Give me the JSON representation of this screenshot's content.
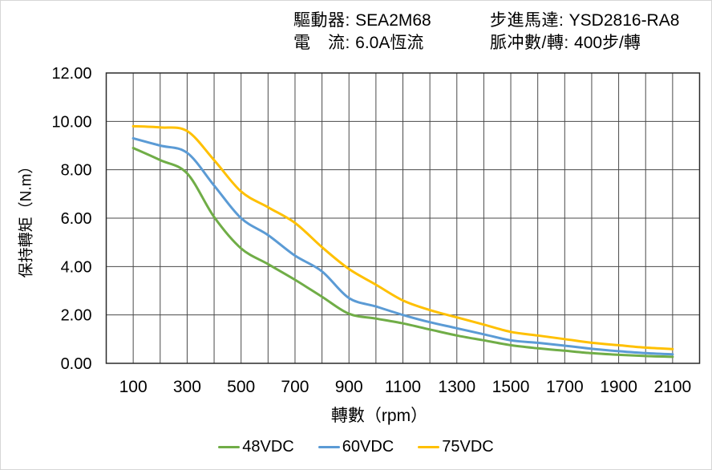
{
  "header": {
    "left": [
      {
        "label": "驅動器: ",
        "value": "SEA2M68"
      },
      {
        "label": "電　流: ",
        "value": "6.0A恆流"
      }
    ],
    "right": [
      {
        "label": "步進馬達: ",
        "value": "YSD2816-RA8"
      },
      {
        "label": "脈冲數/轉: ",
        "value": "400步/轉"
      }
    ]
  },
  "chart_data": {
    "type": "line",
    "title": "",
    "xlabel": "轉數（rpm）",
    "ylabel": "保持轉矩（N.m）",
    "xlim": [
      0,
      2200
    ],
    "ylim": [
      0,
      12
    ],
    "x_gridline_step": 100,
    "y_gridline_step": 2,
    "grid": true,
    "grid_color": "#4a4a4a",
    "border_color": "#2b2b2b",
    "text_color": "#000000",
    "legend_position": "bottom",
    "x_tick_values": [
      100,
      300,
      500,
      700,
      900,
      1100,
      1300,
      1500,
      1700,
      1900,
      2100
    ],
    "x_tick_labels": [
      "100",
      "300",
      "500",
      "700",
      "900",
      "1100",
      "1300",
      "1500",
      "1700",
      "1900",
      "2100"
    ],
    "y_tick_values": [
      0,
      2,
      4,
      6,
      8,
      10,
      12
    ],
    "y_tick_labels": [
      "0.00",
      "2.00",
      "4.00",
      "6.00",
      "8.00",
      "10.00",
      "12.00"
    ],
    "x": [
      100,
      200,
      300,
      400,
      500,
      600,
      700,
      800,
      900,
      1000,
      1100,
      1200,
      1300,
      1400,
      1500,
      1600,
      1700,
      1800,
      1900,
      2000,
      2100
    ],
    "series": [
      {
        "name": "48VDC",
        "color": "#70AD47",
        "values": [
          8.9,
          8.4,
          7.85,
          6.05,
          4.75,
          4.1,
          3.45,
          2.75,
          2.05,
          1.85,
          1.65,
          1.4,
          1.15,
          0.95,
          0.75,
          0.62,
          0.52,
          0.42,
          0.35,
          0.3,
          0.27
        ]
      },
      {
        "name": "60VDC",
        "color": "#5B9BD5",
        "values": [
          9.3,
          9.0,
          8.7,
          7.35,
          6.0,
          5.3,
          4.45,
          3.8,
          2.7,
          2.35,
          2.0,
          1.7,
          1.45,
          1.2,
          0.95,
          0.85,
          0.73,
          0.6,
          0.5,
          0.42,
          0.37
        ]
      },
      {
        "name": "75VDC",
        "color": "#FFC000",
        "values": [
          9.8,
          9.75,
          9.6,
          8.4,
          7.1,
          6.45,
          5.8,
          4.8,
          3.9,
          3.25,
          2.6,
          2.2,
          1.9,
          1.6,
          1.3,
          1.15,
          1.0,
          0.85,
          0.75,
          0.65,
          0.59
        ]
      }
    ]
  }
}
